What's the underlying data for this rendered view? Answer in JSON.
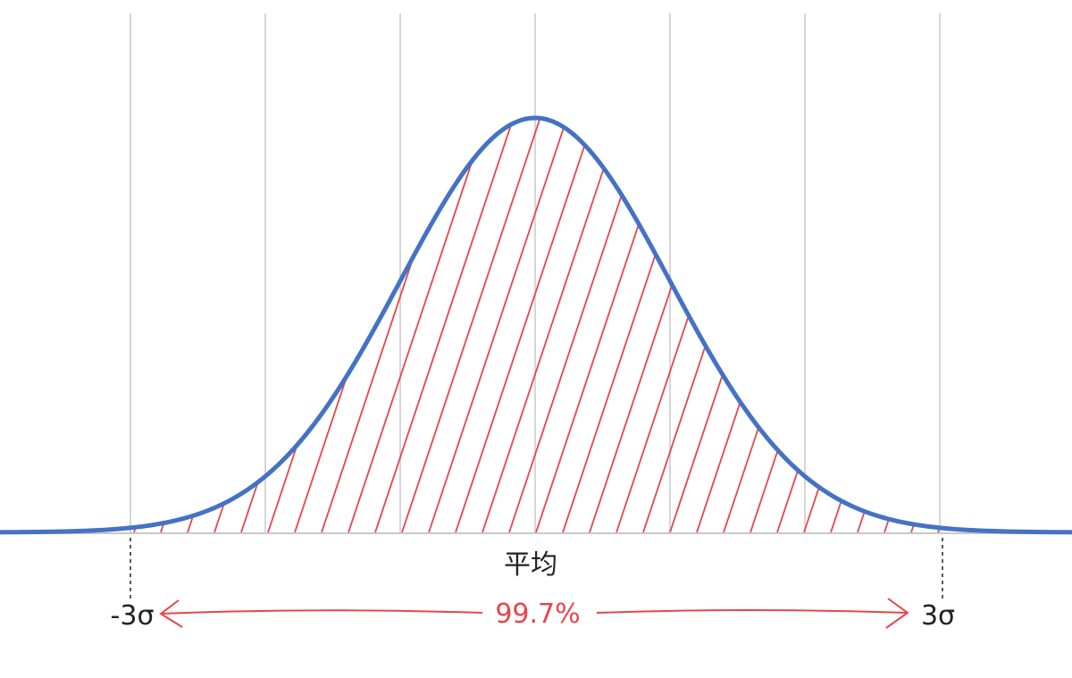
{
  "labels": {
    "mean": "平均",
    "lower": "-3σ",
    "upper": "3σ",
    "coverage": "99.7%"
  }
}
